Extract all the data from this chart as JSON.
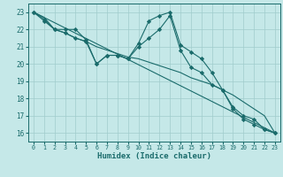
{
  "xlabel": "Humidex (Indice chaleur)",
  "background_color": "#c5e8e8",
  "grid_color": "#a0cccc",
  "line_color": "#1a6b6b",
  "xlim": [
    -0.5,
    23.5
  ],
  "ylim": [
    15.5,
    23.5
  ],
  "yticks": [
    16,
    17,
    18,
    19,
    20,
    21,
    22,
    23
  ],
  "xticks": [
    0,
    1,
    2,
    3,
    4,
    5,
    6,
    7,
    8,
    9,
    10,
    11,
    12,
    13,
    14,
    15,
    16,
    17,
    18,
    19,
    20,
    21,
    22,
    23
  ],
  "series_no_marker": [
    {
      "x": [
        0,
        23
      ],
      "y": [
        23.0,
        16.0
      ]
    },
    {
      "x": [
        0,
        1,
        2,
        3,
        4,
        5,
        6,
        7,
        8,
        9,
        10,
        11,
        12,
        13,
        14,
        15,
        16,
        17,
        18,
        19,
        20,
        21,
        22,
        23
      ],
      "y": [
        23.0,
        22.7,
        22.0,
        21.8,
        21.5,
        21.3,
        21.0,
        20.8,
        20.6,
        20.4,
        20.3,
        20.1,
        19.9,
        19.7,
        19.5,
        19.2,
        19.0,
        18.8,
        18.5,
        18.2,
        17.8,
        17.4,
        17.0,
        16.0
      ]
    }
  ],
  "series_with_marker": [
    {
      "x": [
        0,
        1,
        2,
        3,
        4,
        5,
        6,
        7,
        8,
        9,
        10,
        11,
        12,
        13,
        14,
        15,
        16,
        17,
        18,
        19,
        20,
        21,
        22,
        23
      ],
      "y": [
        23.0,
        22.6,
        22.0,
        22.0,
        22.0,
        21.4,
        20.0,
        20.5,
        20.5,
        20.3,
        21.2,
        22.5,
        22.8,
        23.0,
        21.1,
        20.7,
        20.3,
        19.5,
        18.5,
        17.4,
        16.8,
        16.5,
        16.2,
        16.0
      ]
    },
    {
      "x": [
        0,
        1,
        2,
        3,
        4,
        5,
        6,
        7,
        8,
        9,
        10,
        11,
        12,
        13,
        14,
        15,
        16,
        17,
        18,
        19,
        20,
        21,
        22,
        23
      ],
      "y": [
        23.0,
        22.5,
        22.0,
        21.8,
        21.5,
        21.3,
        20.0,
        20.5,
        20.5,
        20.3,
        21.0,
        21.5,
        22.0,
        22.8,
        20.8,
        19.8,
        19.5,
        18.8,
        18.5,
        17.5,
        17.0,
        16.8,
        16.2,
        16.0
      ]
    }
  ]
}
